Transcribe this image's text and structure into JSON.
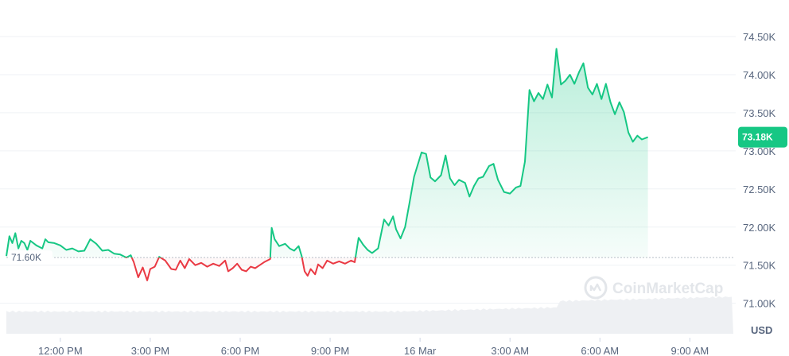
{
  "chart_data": {
    "type": "line",
    "currency": "USD",
    "watermark": "CoinMarketCap",
    "reference_label": "71.60K",
    "reference_value": 71600,
    "current_label": "73.18K",
    "current_value": 73180,
    "ylim": [
      70600,
      74980
    ],
    "y_ticks": [
      71000,
      71500,
      72000,
      72500,
      73000,
      73500,
      74000,
      74500
    ],
    "y_tick_labels": [
      "71.00K",
      "71.50K",
      "72.00K",
      "72.50K",
      "73.00K",
      "73.50K",
      "74.00K",
      "74.50K"
    ],
    "x_tick_labels": [
      "12:00 PM",
      "3:00 PM",
      "6:00 PM",
      "9:00 PM",
      "16 Mar",
      "3:00 AM",
      "6:00 AM",
      "9:00 AM"
    ],
    "x_tick_hours": [
      12,
      15,
      18,
      21,
      24,
      27,
      30,
      33
    ],
    "x_range_hours": [
      10.2,
      34.45
    ],
    "colors": {
      "up": "#16c784",
      "down": "#ea3943",
      "grid": "#eff2f5",
      "volume": "#eef0f3"
    },
    "price_points": [
      [
        10.2,
        71620
      ],
      [
        10.3,
        71880
      ],
      [
        10.4,
        71790
      ],
      [
        10.5,
        71920
      ],
      [
        10.6,
        71720
      ],
      [
        10.7,
        71820
      ],
      [
        10.8,
        71790
      ],
      [
        10.9,
        71700
      ],
      [
        11.0,
        71820
      ],
      [
        11.2,
        71760
      ],
      [
        11.4,
        71720
      ],
      [
        11.5,
        71840
      ],
      [
        11.6,
        71800
      ],
      [
        11.8,
        71790
      ],
      [
        12.0,
        71760
      ],
      [
        12.2,
        71700
      ],
      [
        12.4,
        71720
      ],
      [
        12.6,
        71680
      ],
      [
        12.8,
        71690
      ],
      [
        13.0,
        71840
      ],
      [
        13.2,
        71780
      ],
      [
        13.4,
        71690
      ],
      [
        13.6,
        71700
      ],
      [
        13.8,
        71650
      ],
      [
        14.0,
        71640
      ],
      [
        14.2,
        71600
      ],
      [
        14.35,
        71630
      ],
      [
        14.45,
        71540
      ],
      [
        14.6,
        71340
      ],
      [
        14.75,
        71470
      ],
      [
        14.9,
        71300
      ],
      [
        15.0,
        71450
      ],
      [
        15.15,
        71480
      ],
      [
        15.3,
        71610
      ],
      [
        15.5,
        71560
      ],
      [
        15.7,
        71450
      ],
      [
        15.85,
        71440
      ],
      [
        16.0,
        71560
      ],
      [
        16.15,
        71460
      ],
      [
        16.3,
        71580
      ],
      [
        16.5,
        71500
      ],
      [
        16.7,
        71530
      ],
      [
        16.9,
        71480
      ],
      [
        17.1,
        71520
      ],
      [
        17.3,
        71490
      ],
      [
        17.5,
        71560
      ],
      [
        17.6,
        71420
      ],
      [
        17.75,
        71460
      ],
      [
        17.9,
        71520
      ],
      [
        18.05,
        71440
      ],
      [
        18.2,
        71420
      ],
      [
        18.35,
        71480
      ],
      [
        18.5,
        71460
      ],
      [
        18.65,
        71500
      ],
      [
        18.8,
        71540
      ],
      [
        19.0,
        71580
      ],
      [
        19.05,
        71990
      ],
      [
        19.15,
        71840
      ],
      [
        19.3,
        71750
      ],
      [
        19.5,
        71780
      ],
      [
        19.65,
        71720
      ],
      [
        19.8,
        71690
      ],
      [
        19.95,
        71750
      ],
      [
        20.05,
        71620
      ],
      [
        20.15,
        71420
      ],
      [
        20.25,
        71360
      ],
      [
        20.35,
        71450
      ],
      [
        20.5,
        71380
      ],
      [
        20.6,
        71510
      ],
      [
        20.75,
        71460
      ],
      [
        20.9,
        71560
      ],
      [
        21.1,
        71520
      ],
      [
        21.3,
        71550
      ],
      [
        21.5,
        71520
      ],
      [
        21.7,
        71560
      ],
      [
        21.82,
        71540
      ],
      [
        21.95,
        71860
      ],
      [
        22.1,
        71770
      ],
      [
        22.25,
        71700
      ],
      [
        22.4,
        71660
      ],
      [
        22.6,
        71720
      ],
      [
        22.8,
        72100
      ],
      [
        22.95,
        72020
      ],
      [
        23.1,
        72140
      ],
      [
        23.2,
        71970
      ],
      [
        23.35,
        71850
      ],
      [
        23.5,
        72000
      ],
      [
        23.65,
        72320
      ],
      [
        23.8,
        72660
      ],
      [
        23.9,
        72790
      ],
      [
        24.05,
        72980
      ],
      [
        24.2,
        72960
      ],
      [
        24.35,
        72650
      ],
      [
        24.5,
        72600
      ],
      [
        24.7,
        72680
      ],
      [
        24.85,
        72940
      ],
      [
        25.0,
        72640
      ],
      [
        25.15,
        72550
      ],
      [
        25.3,
        72620
      ],
      [
        25.5,
        72580
      ],
      [
        25.65,
        72400
      ],
      [
        25.8,
        72540
      ],
      [
        25.95,
        72640
      ],
      [
        26.1,
        72660
      ],
      [
        26.3,
        72800
      ],
      [
        26.45,
        72830
      ],
      [
        26.6,
        72620
      ],
      [
        26.8,
        72460
      ],
      [
        27.0,
        72440
      ],
      [
        27.2,
        72520
      ],
      [
        27.35,
        72540
      ],
      [
        27.5,
        72860
      ],
      [
        27.65,
        73800
      ],
      [
        27.8,
        73650
      ],
      [
        27.95,
        73760
      ],
      [
        28.1,
        73680
      ],
      [
        28.25,
        73870
      ],
      [
        28.4,
        73700
      ],
      [
        28.55,
        74340
      ],
      [
        28.7,
        73870
      ],
      [
        28.85,
        73920
      ],
      [
        29.0,
        74000
      ],
      [
        29.15,
        73880
      ],
      [
        29.3,
        74030
      ],
      [
        29.45,
        74150
      ],
      [
        29.6,
        73830
      ],
      [
        29.75,
        73740
      ],
      [
        29.9,
        73880
      ],
      [
        30.05,
        73680
      ],
      [
        30.2,
        73880
      ],
      [
        30.35,
        73640
      ],
      [
        30.5,
        73480
      ],
      [
        30.65,
        73640
      ],
      [
        30.8,
        73510
      ],
      [
        30.95,
        73240
      ],
      [
        31.1,
        73120
      ],
      [
        31.25,
        73200
      ],
      [
        31.4,
        73150
      ],
      [
        31.6,
        73180
      ]
    ]
  }
}
